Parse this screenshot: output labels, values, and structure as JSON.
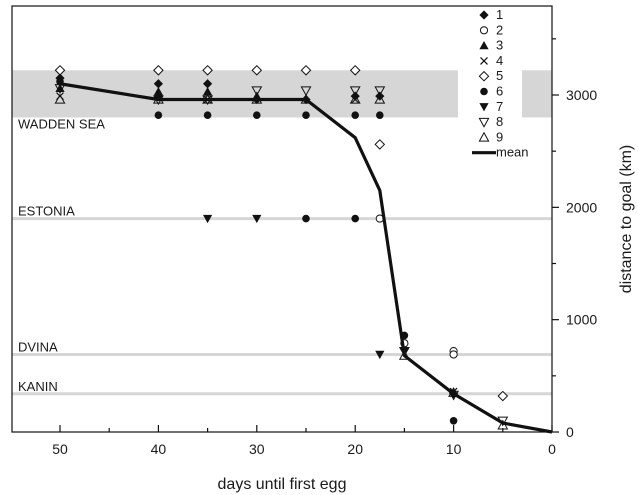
{
  "chart_data": {
    "type": "scatter",
    "xlabel": "days until first egg",
    "ylabel": "distance to goal (km)",
    "xlim": [
      55,
      0
    ],
    "ylim": [
      0,
      3600
    ],
    "x_reversed": true,
    "x_ticks": [
      50,
      40,
      30,
      20,
      10,
      0
    ],
    "y_ticks": [
      0,
      1000,
      2000,
      3000
    ],
    "grid": false,
    "legend_position": "top-right",
    "regions": [
      {
        "label": "WADDEN SEA",
        "y_min": 2800,
        "y_max": 3220,
        "shape": "band",
        "color": "#d6d6d6"
      },
      {
        "label": "ESTONIA",
        "y": 1900,
        "shape": "line",
        "color": "#d6d6d6"
      },
      {
        "label": "DVINA",
        "y": 690,
        "shape": "line",
        "color": "#d6d6d6"
      },
      {
        "label": "KANIN",
        "y": 340,
        "shape": "line",
        "color": "#d6d6d6"
      }
    ],
    "series": [
      {
        "name": "1",
        "marker": "diamond-filled",
        "points": [
          [
            50,
            3150
          ],
          [
            40,
            3100
          ],
          [
            35,
            3100
          ],
          [
            30,
            2960
          ],
          [
            25,
            2960
          ],
          [
            20,
            2990
          ],
          [
            17.5,
            2990
          ],
          [
            15,
            740
          ],
          [
            10,
            340
          ]
        ]
      },
      {
        "name": "2",
        "marker": "circle-open",
        "points": [
          [
            17.5,
            1900
          ],
          [
            15,
            790
          ],
          [
            10,
            720
          ],
          [
            10,
            690
          ]
        ]
      },
      {
        "name": "3",
        "marker": "triangle-filled",
        "points": [
          [
            50,
            3060
          ],
          [
            40,
            3030
          ],
          [
            35,
            3030
          ],
          [
            30,
            2990
          ]
        ]
      },
      {
        "name": "4",
        "marker": "x",
        "points": [
          [
            50,
            2990
          ],
          [
            35,
            2960
          ],
          [
            20,
            2960
          ],
          [
            10,
            360
          ]
        ]
      },
      {
        "name": "5",
        "marker": "diamond-open",
        "points": [
          [
            50,
            3220
          ],
          [
            40,
            3220
          ],
          [
            35,
            3220
          ],
          [
            30,
            3220
          ],
          [
            25,
            3220
          ],
          [
            20,
            3220
          ],
          [
            17.5,
            2560
          ],
          [
            5,
            320
          ]
        ]
      },
      {
        "name": "6",
        "marker": "circle-filled",
        "points": [
          [
            50,
            3120
          ],
          [
            40,
            2990
          ],
          [
            40,
            2820
          ],
          [
            35,
            2820
          ],
          [
            30,
            2820
          ],
          [
            25,
            2820
          ],
          [
            20,
            2820
          ],
          [
            17.5,
            2820
          ],
          [
            20,
            1900
          ],
          [
            25,
            1900
          ],
          [
            15,
            860
          ],
          [
            10,
            100
          ]
        ]
      },
      {
        "name": "7",
        "marker": "triangle-down-filled",
        "points": [
          [
            35,
            1900
          ],
          [
            30,
            1900
          ],
          [
            17.5,
            690
          ]
        ]
      },
      {
        "name": "8",
        "marker": "triangle-down-open",
        "points": [
          [
            50,
            3060
          ],
          [
            40,
            2960
          ],
          [
            35,
            2960
          ],
          [
            30,
            3040
          ],
          [
            25,
            3040
          ],
          [
            20,
            3040
          ],
          [
            17.5,
            3040
          ],
          [
            15,
            720
          ],
          [
            10,
            330
          ],
          [
            5,
            100
          ]
        ]
      },
      {
        "name": "9",
        "marker": "triangle-open",
        "points": [
          [
            50,
            2960
          ],
          [
            40,
            2960
          ],
          [
            35,
            2960
          ],
          [
            30,
            2960
          ],
          [
            25,
            2960
          ],
          [
            20,
            2960
          ],
          [
            17.5,
            2960
          ],
          [
            15,
            680
          ],
          [
            10,
            350
          ],
          [
            5,
            60
          ]
        ]
      },
      {
        "name": "mean",
        "marker": "line",
        "points": [
          [
            50,
            3100
          ],
          [
            40,
            2960
          ],
          [
            35,
            2960
          ],
          [
            30,
            2960
          ],
          [
            25,
            2960
          ],
          [
            20,
            2620
          ],
          [
            17.5,
            2150
          ],
          [
            15,
            680
          ],
          [
            10,
            340
          ],
          [
            5,
            80
          ],
          [
            0,
            0
          ]
        ]
      }
    ]
  }
}
